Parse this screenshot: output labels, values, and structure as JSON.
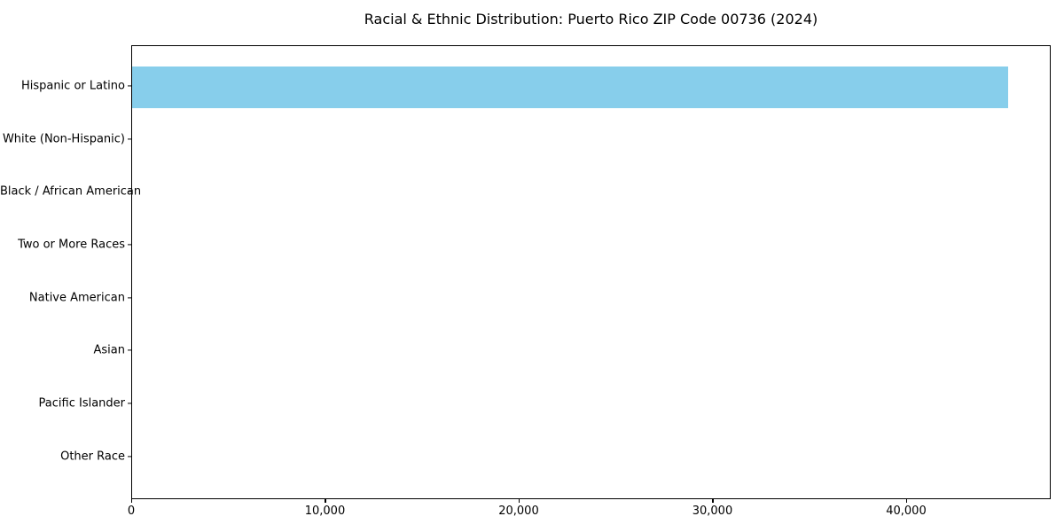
{
  "figure": {
    "background": "#ffffff"
  },
  "chart_data": {
    "type": "bar",
    "orientation": "horizontal",
    "title": "Racial & Ethnic Distribution: Puerto Rico ZIP Code 00736 (2024)",
    "categories": [
      "Hispanic or Latino",
      "White (Non-Hispanic)",
      "Black / African American",
      "Two or More Races",
      "Native American",
      "Asian",
      "Pacific Islander",
      "Other Race"
    ],
    "values": [
      45200,
      0,
      0,
      0,
      0,
      0,
      0,
      0
    ],
    "xlabel": "",
    "ylabel": "",
    "xlim": [
      0,
      47460
    ],
    "x_ticks": [
      {
        "value": 0,
        "label": "0"
      },
      {
        "value": 10000,
        "label": "10,000"
      },
      {
        "value": 20000,
        "label": "20,000"
      },
      {
        "value": 30000,
        "label": "30,000"
      },
      {
        "value": 40000,
        "label": "40,000"
      }
    ],
    "grid": false,
    "legend": null,
    "bar_color": "#87ceeb",
    "axis_color": "#000000",
    "text_color": "#000000"
  }
}
